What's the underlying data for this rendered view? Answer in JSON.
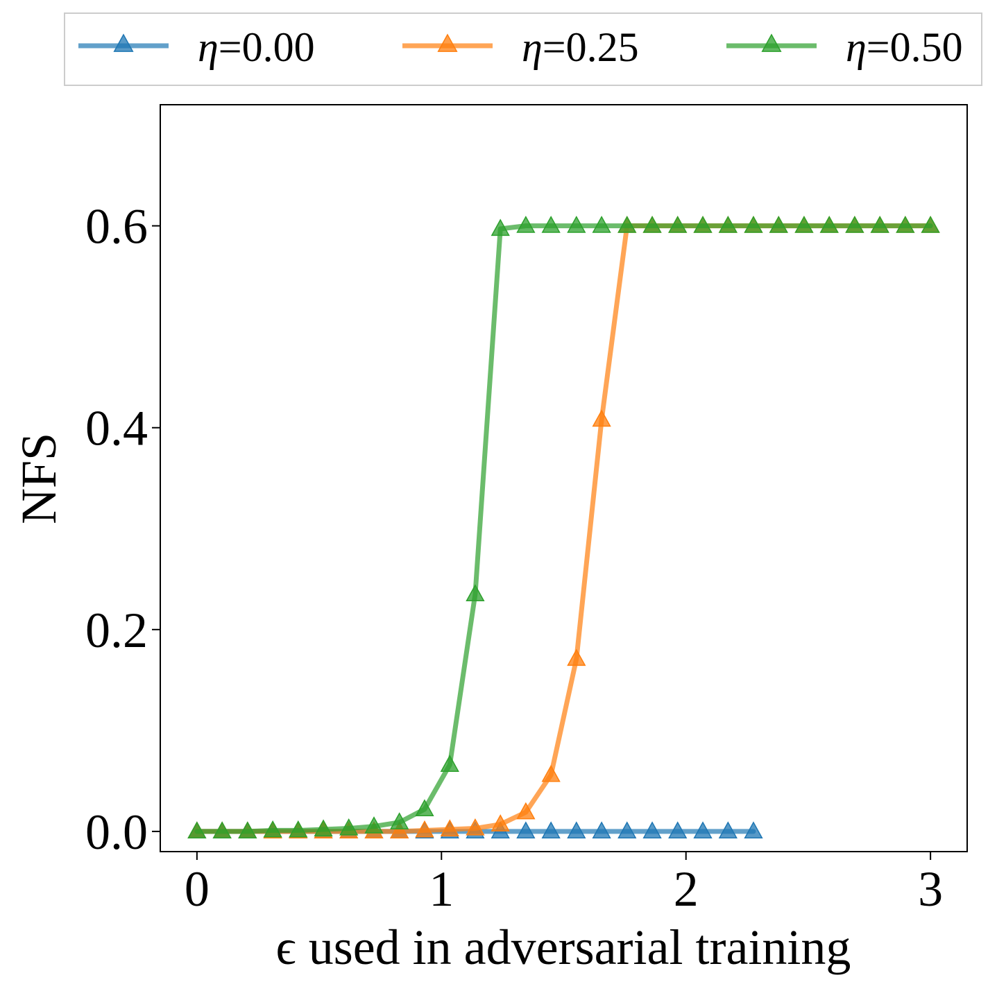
{
  "chart_data": {
    "type": "line",
    "title": "",
    "xlabel": "ϵ used in adversarial training",
    "ylabel": "NFS",
    "xlim": [
      -0.15,
      3.15
    ],
    "ylim": [
      -0.02,
      0.72
    ],
    "xticks": [
      0,
      1,
      2,
      3
    ],
    "xtick_labels": [
      "0",
      "1",
      "2",
      "3"
    ],
    "yticks": [
      0.0,
      0.2,
      0.4,
      0.6
    ],
    "ytick_labels": [
      "0.0",
      "0.2",
      "0.4",
      "0.6"
    ],
    "grid": false,
    "legend_position": "top",
    "marker": "triangle",
    "series": [
      {
        "name": "η=0.00",
        "legend_symbol": "η",
        "legend_value": "=0.00",
        "color": "#1f77b4",
        "x": [
          0.0,
          0.103,
          0.207,
          0.31,
          0.414,
          0.517,
          0.621,
          0.724,
          0.828,
          0.931,
          1.034,
          1.138,
          1.241,
          1.345,
          1.448,
          1.552,
          1.655,
          1.759,
          1.862,
          1.966,
          2.069,
          2.172,
          2.276
        ],
        "y": [
          0,
          0,
          0,
          0,
          0,
          0,
          0,
          0,
          0,
          0,
          0,
          0,
          0,
          0,
          0,
          0,
          0,
          0,
          0,
          0,
          0,
          0,
          0
        ]
      },
      {
        "name": "η=0.25",
        "legend_symbol": "η",
        "legend_value": "=0.25",
        "color": "#ff7f0e",
        "x": [
          0.0,
          0.103,
          0.207,
          0.31,
          0.414,
          0.517,
          0.621,
          0.724,
          0.828,
          0.931,
          1.034,
          1.138,
          1.241,
          1.345,
          1.448,
          1.552,
          1.655,
          1.759,
          1.862,
          1.966,
          2.069,
          2.172,
          2.276,
          2.379,
          2.483,
          2.586,
          2.69,
          2.793,
          2.897,
          3.0
        ],
        "y": [
          0,
          0,
          0,
          0,
          0,
          0,
          0,
          0,
          0,
          0.001,
          0.002,
          0.003,
          0.007,
          0.019,
          0.056,
          0.171,
          0.408,
          0.6,
          0.6,
          0.6,
          0.6,
          0.6,
          0.6,
          0.6,
          0.6,
          0.6,
          0.6,
          0.6,
          0.6,
          0.6
        ]
      },
      {
        "name": "η=0.50",
        "legend_symbol": "η",
        "legend_value": "=0.50",
        "color": "#2ca02c",
        "x": [
          0.0,
          0.103,
          0.207,
          0.31,
          0.414,
          0.517,
          0.621,
          0.724,
          0.828,
          0.931,
          1.034,
          1.138,
          1.241,
          1.345,
          1.448,
          1.552,
          1.655,
          1.759,
          1.862,
          1.966,
          2.069,
          2.172,
          2.276,
          2.379,
          2.483,
          2.586,
          2.69,
          2.793,
          2.897,
          3.0
        ],
        "y": [
          0,
          0,
          0,
          0.001,
          0.001,
          0.002,
          0.003,
          0.005,
          0.009,
          0.022,
          0.066,
          0.235,
          0.597,
          0.6,
          0.6,
          0.6,
          0.6,
          0.6,
          0.6,
          0.6,
          0.6,
          0.6,
          0.6,
          0.6,
          0.6,
          0.6,
          0.6,
          0.6,
          0.6,
          0.6
        ]
      }
    ]
  }
}
